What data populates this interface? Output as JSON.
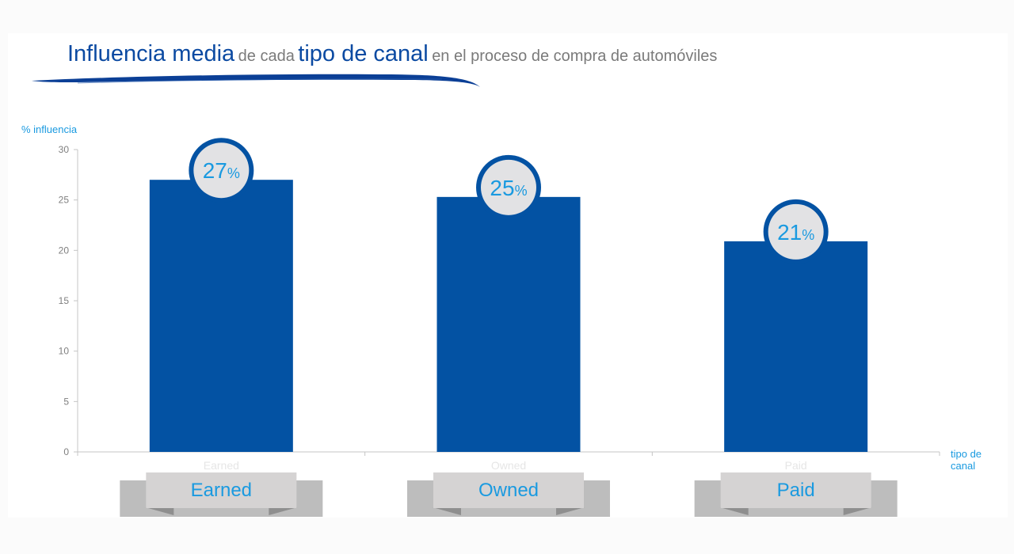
{
  "title": {
    "part1": "Influencia media",
    "part2": "de cada",
    "part3": "tipo de canal",
    "part4": "en el proceso de compra de automóviles"
  },
  "colors": {
    "bar": "#0352a3",
    "title_blue": "#0b4aa2",
    "accent": "#1a9ae0",
    "circle_fill": "#e2e2e4",
    "ribbon_front": "#d5d3d3",
    "ribbon_back": "#bdbdbd"
  },
  "chart_data": {
    "type": "bar",
    "title": "Influencia media de cada tipo de canal en el proceso de compra de automóviles",
    "xlabel": "tipo de canal",
    "ylabel": "% influencia",
    "categories": [
      "Earned",
      "Owned",
      "Paid"
    ],
    "values": [
      27,
      25.3,
      20.9
    ],
    "data_labels": [
      "27",
      "25",
      "21"
    ],
    "label_unit": "%",
    "ylim": [
      0,
      30
    ],
    "yticks": [
      0,
      5,
      10,
      15,
      20,
      25,
      30
    ],
    "grid": false,
    "legend": "none"
  }
}
